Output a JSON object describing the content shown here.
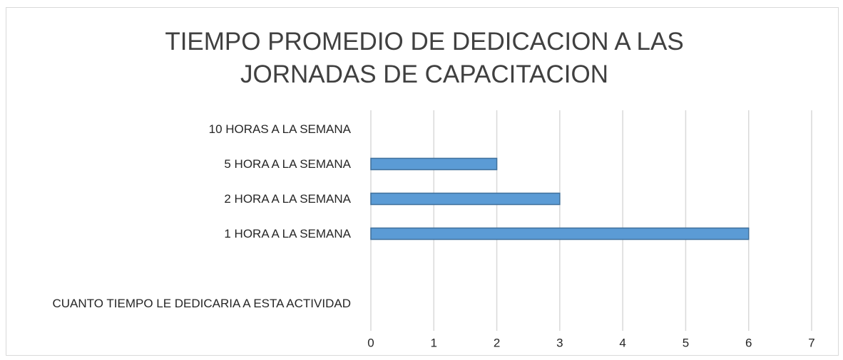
{
  "chart_data": {
    "type": "bar",
    "orientation": "horizontal",
    "title": "TIEMPO PROMEDIO DE DEDICACION A LAS JORNADAS DE CAPACITACION",
    "categories": [
      "CUANTO TIEMPO LE DEDICARIA A ESTA ACTIVIDAD",
      null,
      "1 HORA A LA SEMANA",
      "2 HORA A LA SEMANA",
      "5 HORA A LA SEMANA",
      "10 HORAS A LA SEMANA"
    ],
    "values": [
      null,
      null,
      6,
      3,
      2,
      0
    ],
    "color": "#5b9bd5",
    "xlim": [
      0,
      7
    ],
    "xticks": [
      0,
      1,
      2,
      3,
      4,
      5,
      6,
      7
    ],
    "grid": true
  }
}
